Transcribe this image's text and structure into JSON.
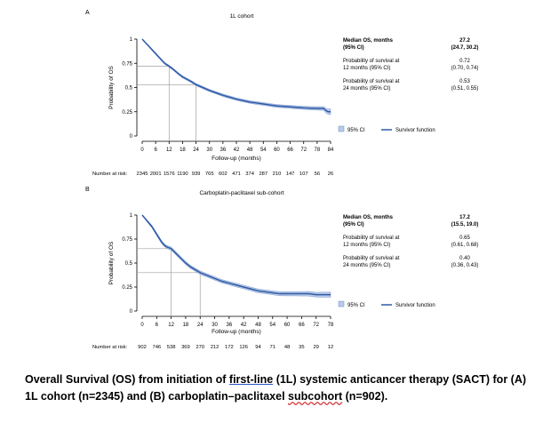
{
  "caption": {
    "part1": "Overall Survival (OS) from initiation of ",
    "link": "first-line",
    "part2": " (1L) systemic anticancer therapy (SACT) for (A) 1L cohort (n=2345) and (B) carboplatin–paclitaxel ",
    "misspelled": "subcohort",
    "part3": " (n=902)."
  },
  "chart_data": [
    {
      "type": "line",
      "panel": "A",
      "title": "1L cohort",
      "xlabel": "Follow-up (months)",
      "ylabel": "Probability of OS",
      "xlim": [
        0,
        84
      ],
      "ylim": [
        0,
        1
      ],
      "x_ticks": [
        0,
        6,
        12,
        18,
        24,
        30,
        36,
        42,
        48,
        54,
        60,
        66,
        72,
        78,
        84
      ],
      "y_ticks": [
        0,
        0.25,
        0.5,
        0.75,
        1
      ],
      "y_tick_labels": [
        "0",
        "0.25",
        "0.5",
        "0.75",
        "1"
      ],
      "series": [
        {
          "name": "Survivor function",
          "x": [
            0,
            1,
            2,
            3,
            4,
            5,
            6,
            7,
            8,
            9,
            10,
            11,
            12,
            14,
            16,
            18,
            20,
            22,
            24,
            27,
            30,
            33,
            36,
            39,
            42,
            45,
            48,
            51,
            54,
            57,
            60,
            63,
            66,
            69,
            72,
            75,
            78,
            81,
            82,
            83,
            84
          ],
          "y": [
            1.0,
            0.975,
            0.95,
            0.925,
            0.9,
            0.875,
            0.85,
            0.825,
            0.8,
            0.775,
            0.75,
            0.735,
            0.72,
            0.685,
            0.645,
            0.61,
            0.585,
            0.56,
            0.53,
            0.5,
            0.47,
            0.445,
            0.42,
            0.4,
            0.38,
            0.365,
            0.35,
            0.34,
            0.33,
            0.32,
            0.31,
            0.305,
            0.3,
            0.295,
            0.29,
            0.287,
            0.285,
            0.283,
            0.26,
            0.25,
            0.25
          ],
          "ci_halfwidth": [
            0.0,
            0.004,
            0.006,
            0.008,
            0.009,
            0.009,
            0.01,
            0.01,
            0.01,
            0.01,
            0.01,
            0.01,
            0.011,
            0.011,
            0.011,
            0.011,
            0.011,
            0.011,
            0.012,
            0.012,
            0.012,
            0.012,
            0.013,
            0.013,
            0.013,
            0.013,
            0.013,
            0.014,
            0.014,
            0.014,
            0.015,
            0.015,
            0.015,
            0.016,
            0.016,
            0.017,
            0.018,
            0.02,
            0.025,
            0.028,
            0.03
          ]
        }
      ],
      "reference_lines": [
        {
          "x": 12,
          "y": 0.72
        },
        {
          "x": 24,
          "y": 0.53
        }
      ],
      "legend": {
        "ci_label": "95% CI",
        "line_label": "Survivor function"
      },
      "stats": {
        "header_label": "Median OS, months",
        "header_sub": "(95% CI)",
        "header_value": "27.2",
        "header_ci": "(24.7, 30.2)",
        "row1_label": "Probability of survival at",
        "row1_sub": "12 months (95% CI)",
        "row1_value": "0.72",
        "row1_ci": "(0.70, 0.74)",
        "row2_label": "Probability of survival at",
        "row2_sub": "24 months (95% CI)",
        "row2_value": "0.53",
        "row2_ci": "(0.51, 0.55)"
      },
      "risk_label": "Number at risk:",
      "at_risk": [
        "2345",
        "2001",
        "1576",
        "1190",
        "939",
        "765",
        "602",
        "471",
        "374",
        "287",
        "210",
        "147",
        "107",
        "56",
        "26"
      ]
    },
    {
      "type": "line",
      "panel": "B",
      "title": "Carboplatin-paclitaxel sub-cohort",
      "xlabel": "Follow-up (months)",
      "ylabel": "Probability of OS",
      "xlim": [
        0,
        78
      ],
      "ylim": [
        0,
        1
      ],
      "x_ticks": [
        0,
        6,
        12,
        18,
        24,
        30,
        36,
        42,
        48,
        54,
        60,
        66,
        72,
        78
      ],
      "y_ticks": [
        0,
        0.25,
        0.5,
        0.75,
        1
      ],
      "y_tick_labels": [
        "0",
        "0.25",
        "0.5",
        "0.75",
        "1"
      ],
      "series": [
        {
          "name": "Survivor function",
          "x": [
            0,
            1,
            2,
            3,
            4,
            5,
            6,
            7,
            8,
            9,
            10,
            11,
            12,
            14,
            16,
            18,
            20,
            22,
            24,
            27,
            30,
            33,
            36,
            39,
            42,
            45,
            48,
            51,
            54,
            57,
            60,
            63,
            66,
            69,
            72,
            75,
            78
          ],
          "y": [
            1.0,
            0.97,
            0.94,
            0.91,
            0.88,
            0.84,
            0.8,
            0.76,
            0.72,
            0.69,
            0.67,
            0.66,
            0.65,
            0.6,
            0.55,
            0.5,
            0.46,
            0.43,
            0.4,
            0.37,
            0.34,
            0.31,
            0.29,
            0.27,
            0.25,
            0.23,
            0.21,
            0.2,
            0.19,
            0.18,
            0.18,
            0.18,
            0.18,
            0.18,
            0.17,
            0.17,
            0.17
          ],
          "ci_halfwidth": [
            0.0,
            0.006,
            0.01,
            0.012,
            0.013,
            0.014,
            0.015,
            0.015,
            0.016,
            0.016,
            0.016,
            0.016,
            0.017,
            0.017,
            0.017,
            0.017,
            0.017,
            0.017,
            0.018,
            0.018,
            0.018,
            0.018,
            0.018,
            0.019,
            0.019,
            0.019,
            0.02,
            0.02,
            0.02,
            0.021,
            0.022,
            0.022,
            0.023,
            0.024,
            0.025,
            0.026,
            0.027
          ]
        }
      ],
      "reference_lines": [
        {
          "x": 12,
          "y": 0.65
        },
        {
          "x": 24,
          "y": 0.4
        }
      ],
      "legend": {
        "ci_label": "95% CI",
        "line_label": "Survivor function"
      },
      "stats": {
        "header_label": "Median OS, months",
        "header_sub": "(95% CI)",
        "header_value": "17.2",
        "header_ci": "(15.5, 19.0)",
        "row1_label": "Probability of survival at",
        "row1_sub": "12 months (95% CI)",
        "row1_value": "0.65",
        "row1_ci": "(0.61, 0.68)",
        "row2_label": "Probability of survival at",
        "row2_sub": "24 months (95% CI)",
        "row2_value": "0.40",
        "row2_ci": "(0.36, 0.43)"
      },
      "risk_label": "Number at risk:",
      "at_risk": [
        "902",
        "746",
        "538",
        "369",
        "270",
        "212",
        "172",
        "126",
        "94",
        "71",
        "48",
        "35",
        "29",
        "12"
      ]
    }
  ],
  "colors": {
    "line": "#2f5aa8",
    "ci_fill": "#b9cbe6",
    "ci_edge": "#6a8cc6",
    "ref_line": "#a0a0a0",
    "axis": "#000000"
  }
}
